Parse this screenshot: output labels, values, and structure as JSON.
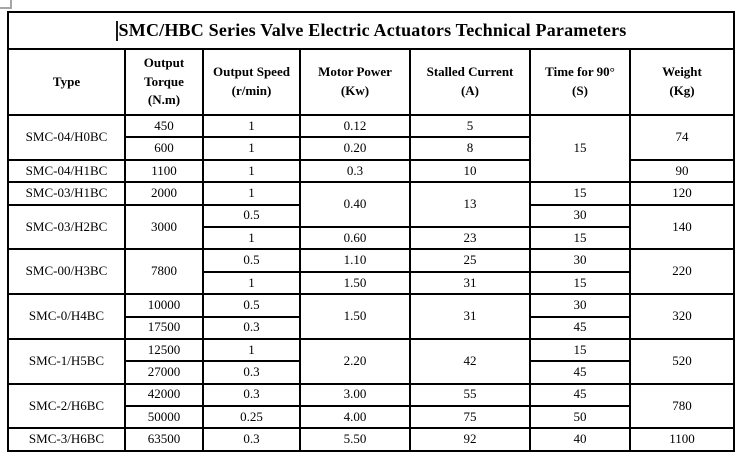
{
  "title": "SMC/HBC Series Valve Electric Actuators Technical Parameters",
  "columns": [
    {
      "label": "Type",
      "unit": ""
    },
    {
      "label": "Output Torque",
      "unit": "(N.m)"
    },
    {
      "label": "Output Speed",
      "unit": "(r/min)"
    },
    {
      "label": "Motor Power",
      "unit": "(Kw)"
    },
    {
      "label": "Stalled Current",
      "unit": "(A)"
    },
    {
      "label": "Time for 90°",
      "unit": "(S)"
    },
    {
      "label": "Weight",
      "unit": "(Kg)"
    }
  ],
  "rows": [
    [
      {
        "text": "SMC-04/H0BC",
        "rowspan": 2,
        "type": true
      },
      {
        "text": "450"
      },
      {
        "text": "1"
      },
      {
        "text": "0.12"
      },
      {
        "text": "5"
      },
      {
        "text": "15",
        "rowspan": 3
      },
      {
        "text": "74",
        "rowspan": 2
      }
    ],
    [
      {
        "text": "600"
      },
      {
        "text": "1"
      },
      {
        "text": "0.20"
      },
      {
        "text": "8"
      }
    ],
    [
      {
        "text": "SMC-04/H1BC",
        "type": true
      },
      {
        "text": "1100"
      },
      {
        "text": "1"
      },
      {
        "text": "0.3"
      },
      {
        "text": "10"
      },
      {
        "text": "90"
      }
    ],
    [
      {
        "text": "SMC-03/H1BC",
        "type": true
      },
      {
        "text": "2000"
      },
      {
        "text": "1"
      },
      {
        "text": "0.40",
        "rowspan": 2
      },
      {
        "text": "13",
        "rowspan": 2
      },
      {
        "text": "15"
      },
      {
        "text": "120"
      }
    ],
    [
      {
        "text": "SMC-03/H2BC",
        "rowspan": 2,
        "type": true
      },
      {
        "text": "3000",
        "rowspan": 2
      },
      {
        "text": "0.5"
      },
      {
        "text": "30"
      },
      {
        "text": "140",
        "rowspan": 2
      }
    ],
    [
      {
        "text": "1"
      },
      {
        "text": "0.60"
      },
      {
        "text": "23"
      },
      {
        "text": "15"
      }
    ],
    [
      {
        "text": "SMC-00/H3BC",
        "rowspan": 2,
        "type": true
      },
      {
        "text": "7800",
        "rowspan": 2
      },
      {
        "text": "0.5"
      },
      {
        "text": "1.10"
      },
      {
        "text": "25"
      },
      {
        "text": "30"
      },
      {
        "text": "220",
        "rowspan": 2
      }
    ],
    [
      {
        "text": "1"
      },
      {
        "text": "1.50"
      },
      {
        "text": "31"
      },
      {
        "text": "15"
      }
    ],
    [
      {
        "text": "SMC-0/H4BC",
        "rowspan": 2,
        "type": true
      },
      {
        "text": "10000"
      },
      {
        "text": "0.5"
      },
      {
        "text": "1.50",
        "rowspan": 2
      },
      {
        "text": "31",
        "rowspan": 2
      },
      {
        "text": "30"
      },
      {
        "text": "320",
        "rowspan": 2
      }
    ],
    [
      {
        "text": "17500"
      },
      {
        "text": "0.3"
      },
      {
        "text": "45"
      }
    ],
    [
      {
        "text": "SMC-1/H5BC",
        "rowspan": 2,
        "type": true
      },
      {
        "text": "12500"
      },
      {
        "text": "1"
      },
      {
        "text": "2.20",
        "rowspan": 2
      },
      {
        "text": "42",
        "rowspan": 2
      },
      {
        "text": "15"
      },
      {
        "text": "520",
        "rowspan": 2
      }
    ],
    [
      {
        "text": "27000"
      },
      {
        "text": "0.3"
      },
      {
        "text": "45"
      }
    ],
    [
      {
        "text": "SMC-2/H6BC",
        "rowspan": 2,
        "type": true
      },
      {
        "text": "42000"
      },
      {
        "text": "0.3"
      },
      {
        "text": "3.00"
      },
      {
        "text": "55"
      },
      {
        "text": "45"
      },
      {
        "text": "780",
        "rowspan": 2
      }
    ],
    [
      {
        "text": "50000"
      },
      {
        "text": "0.25"
      },
      {
        "text": "4.00"
      },
      {
        "text": "75"
      },
      {
        "text": "50"
      }
    ],
    [
      {
        "text": "SMC-3/H6BC",
        "type": true
      },
      {
        "text": "63500"
      },
      {
        "text": "0.3"
      },
      {
        "text": "5.50"
      },
      {
        "text": "92"
      },
      {
        "text": "40"
      },
      {
        "text": "1100"
      }
    ]
  ]
}
